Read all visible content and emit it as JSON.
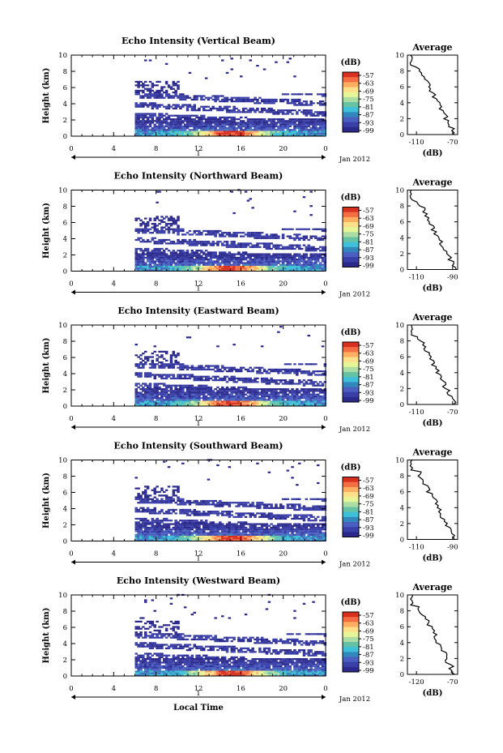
{
  "chart_data": [
    {
      "type": "heatmap",
      "title": "Echo Intensity (Vertical Beam)",
      "ylabel": "Height (km)",
      "y_ticks": [
        "0",
        "2",
        "4",
        "6",
        "8",
        "10"
      ],
      "x_ticks": [
        "0",
        "4",
        "8",
        "12",
        "16",
        "20",
        "0"
      ],
      "date_tick": "1",
      "date_label": "Jan 2012",
      "colorbar": {
        "unit": "(dB)",
        "levels": [
          "-57",
          "-63",
          "-69",
          "-75",
          "-81",
          "-87",
          "-93",
          "-99"
        ]
      },
      "average": {
        "title": "Average",
        "xlabel": "(dB)",
        "x_ticks": [
          "-110",
          "-70"
        ],
        "y_ticks": [
          "0",
          "2",
          "4",
          "6",
          "8",
          "10"
        ]
      }
    },
    {
      "type": "heatmap",
      "title": "Echo Intensity (Northward Beam)",
      "ylabel": "Height (km)",
      "y_ticks": [
        "0",
        "2",
        "4",
        "6",
        "8",
        "10"
      ],
      "x_ticks": [
        "0",
        "4",
        "8",
        "12",
        "16",
        "20",
        "0"
      ],
      "date_tick": "1",
      "date_label": "Jan 2012",
      "colorbar": {
        "unit": "(dB)",
        "levels": [
          "-57",
          "-63",
          "-69",
          "-75",
          "-81",
          "-87",
          "-93",
          "-99"
        ]
      },
      "average": {
        "title": "Average",
        "xlabel": "(dB)",
        "x_ticks": [
          "-110",
          "-90"
        ],
        "y_ticks": [
          "0",
          "2",
          "4",
          "6",
          "8",
          "10"
        ]
      }
    },
    {
      "type": "heatmap",
      "title": "Echo Intensity (Eastward Beam)",
      "ylabel": "Height (km)",
      "y_ticks": [
        "0",
        "2",
        "4",
        "6",
        "8",
        "10"
      ],
      "x_ticks": [
        "0",
        "4",
        "8",
        "12",
        "16",
        "20",
        "0"
      ],
      "date_tick": "1",
      "date_label": "Jan 2012",
      "colorbar": {
        "unit": "(dB)",
        "levels": [
          "-57",
          "-63",
          "-69",
          "-75",
          "-81",
          "-87",
          "-93",
          "-99"
        ]
      },
      "average": {
        "title": "Average",
        "xlabel": "(dB)",
        "x_ticks": [
          "-110",
          "-70"
        ],
        "y_ticks": [
          "0",
          "2",
          "4",
          "6",
          "8",
          "10"
        ]
      }
    },
    {
      "type": "heatmap",
      "title": "Echo Intensity (Southward Beam)",
      "ylabel": "Height (km)",
      "y_ticks": [
        "0",
        "2",
        "4",
        "6",
        "8",
        "10"
      ],
      "x_ticks": [
        "0",
        "4",
        "8",
        "12",
        "16",
        "20",
        "0"
      ],
      "date_tick": "1",
      "date_label": "Jan 2012",
      "colorbar": {
        "unit": "(dB)",
        "levels": [
          "-57",
          "-63",
          "-69",
          "-75",
          "-81",
          "-87",
          "-93",
          "-99"
        ]
      },
      "average": {
        "title": "Average",
        "xlabel": "(dB)",
        "x_ticks": [
          "-110",
          "-90"
        ],
        "y_ticks": [
          "0",
          "2",
          "4",
          "6",
          "8",
          "10"
        ]
      }
    },
    {
      "type": "heatmap",
      "title": "Echo Intensity (Westward Beam)",
      "ylabel": "Height (km)",
      "y_ticks": [
        "0",
        "2",
        "4",
        "6",
        "8",
        "10"
      ],
      "x_ticks": [
        "0",
        "4",
        "8",
        "12",
        "16",
        "20",
        "0"
      ],
      "date_tick": "1",
      "date_label": "Jan 2012",
      "xlabel": "Local Time",
      "colorbar": {
        "unit": "(dB)",
        "levels": [
          "-57",
          "-63",
          "-69",
          "-75",
          "-81",
          "-87",
          "-93",
          "-99"
        ]
      },
      "average": {
        "title": "Average",
        "xlabel": "(dB)",
        "x_ticks": [
          "-120",
          "-70"
        ],
        "y_ticks": [
          "0",
          "2",
          "4",
          "6",
          "8",
          "10"
        ]
      }
    }
  ],
  "colorbar_colors": [
    "#d7301f",
    "#f46d43",
    "#fdae61",
    "#fee08b",
    "#e6f598",
    "#abdda4",
    "#66c2a5",
    "#3ec1d8",
    "#3288bd",
    "#4a5fbf",
    "#3a3fa8",
    "#2b2a8c"
  ]
}
